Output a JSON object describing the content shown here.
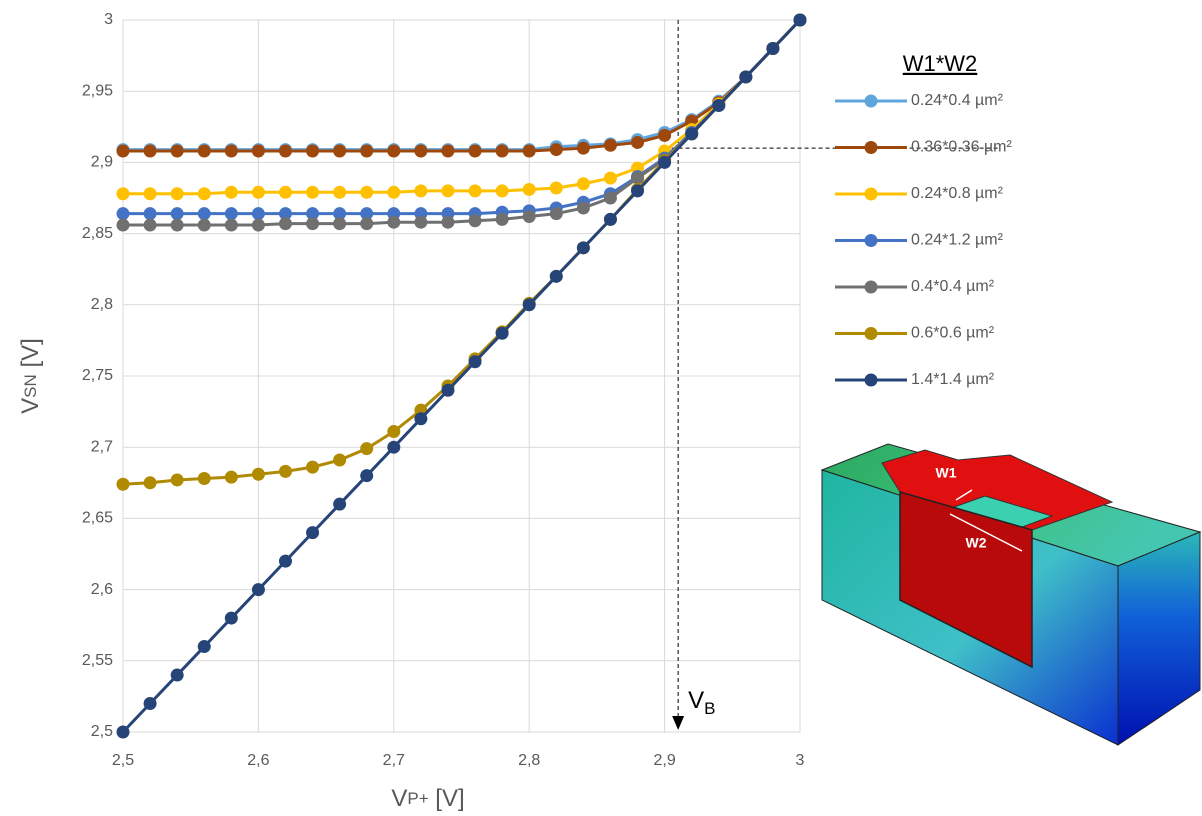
{
  "chart_data": {
    "type": "line",
    "ylabel_parts": [
      "V",
      "SN",
      " [V]"
    ],
    "xlabel_parts": [
      "V",
      "P+",
      " [V]"
    ],
    "legend_title": "W1*W2",
    "annotation": {
      "main": "V",
      "sub": "B"
    },
    "figure_labels": [
      "W1",
      "W2"
    ],
    "vline": 2.91,
    "hline": 2.91,
    "x": [
      2.5,
      2.52,
      2.54,
      2.56,
      2.58,
      2.6,
      2.62,
      2.64,
      2.66,
      2.68,
      2.7,
      2.72,
      2.74,
      2.76,
      2.78,
      2.8,
      2.82,
      2.84,
      2.86,
      2.88,
      2.9,
      2.92,
      2.94,
      2.96,
      2.98,
      3
    ],
    "series": [
      {
        "name": "0.24*0.4 µm²",
        "color": "#5fa6dd",
        "values": [
          2.909,
          2.909,
          2.909,
          2.909,
          2.909,
          2.909,
          2.909,
          2.909,
          2.909,
          2.909,
          2.909,
          2.909,
          2.909,
          2.909,
          2.909,
          2.909,
          2.911,
          2.912,
          2.913,
          2.916,
          2.921,
          2.93,
          2.943,
          2.96,
          2.98,
          3
        ]
      },
      {
        "name": "0.36*0.36 µm²",
        "color": "#9e480e",
        "values": [
          2.908,
          2.908,
          2.908,
          2.908,
          2.908,
          2.908,
          2.908,
          2.908,
          2.908,
          2.908,
          2.908,
          2.908,
          2.908,
          2.908,
          2.908,
          2.908,
          2.909,
          2.91,
          2.912,
          2.914,
          2.919,
          2.929,
          2.942,
          2.96,
          2.98,
          3
        ]
      },
      {
        "name": "0.24*0.8 µm²",
        "color": "#ffc000",
        "values": [
          2.878,
          2.878,
          2.878,
          2.878,
          2.879,
          2.879,
          2.879,
          2.879,
          2.879,
          2.879,
          2.879,
          2.88,
          2.88,
          2.88,
          2.88,
          2.881,
          2.882,
          2.885,
          2.889,
          2.896,
          2.908,
          2.923,
          2.941,
          2.96,
          2.98,
          3
        ]
      },
      {
        "name": "0.24*1.2 µm²",
        "color": "#4472c4",
        "values": [
          2.864,
          2.864,
          2.864,
          2.864,
          2.864,
          2.864,
          2.864,
          2.864,
          2.864,
          2.864,
          2.864,
          2.864,
          2.864,
          2.864,
          2.865,
          2.866,
          2.868,
          2.872,
          2.878,
          2.89,
          2.903,
          2.921,
          2.94,
          2.96,
          2.98,
          3
        ]
      },
      {
        "name": "0.4*0.4 µm²",
        "color": "#707070",
        "values": [
          2.856,
          2.856,
          2.856,
          2.856,
          2.856,
          2.856,
          2.857,
          2.857,
          2.857,
          2.857,
          2.858,
          2.858,
          2.858,
          2.859,
          2.86,
          2.862,
          2.864,
          2.868,
          2.875,
          2.889,
          2.902,
          2.92,
          2.94,
          2.96,
          2.98,
          3
        ]
      },
      {
        "name": "0.6*0.6 µm²",
        "color": "#b08a00",
        "values": [
          2.674,
          2.675,
          2.677,
          2.678,
          2.679,
          2.681,
          2.683,
          2.686,
          2.691,
          2.699,
          2.711,
          2.726,
          2.743,
          2.762,
          2.781,
          2.801,
          2.82,
          2.84,
          2.86,
          2.881,
          2.901,
          2.92,
          2.94,
          2.96,
          2.98,
          3
        ]
      },
      {
        "name": "1.4*1.4 µm²",
        "color": "#264478",
        "values": [
          2.5,
          2.52,
          2.54,
          2.56,
          2.58,
          2.6,
          2.62,
          2.64,
          2.66,
          2.68,
          2.7,
          2.72,
          2.74,
          2.76,
          2.78,
          2.8,
          2.82,
          2.84,
          2.86,
          2.88,
          2.9,
          2.92,
          2.94,
          2.96,
          2.98,
          3
        ]
      }
    ],
    "xlim": [
      2.5,
      3
    ],
    "ylim": [
      2.5,
      3
    ],
    "xticks": [
      {
        "value": 2.5,
        "label": "2,5"
      },
      {
        "value": 2.6,
        "label": "2,6"
      },
      {
        "value": 2.7,
        "label": "2,7"
      },
      {
        "value": 2.8,
        "label": "2,8"
      },
      {
        "value": 2.9,
        "label": "2,9"
      },
      3
    ],
    "yticks": [
      {
        "value": 2.5,
        "label": "2,5"
      },
      {
        "value": 2.55,
        "label": "2,55"
      },
      {
        "value": 2.6,
        "label": "2,6"
      },
      {
        "value": 2.65,
        "label": "2,65"
      },
      {
        "value": 2.7,
        "label": "2,7"
      },
      {
        "value": 2.75,
        "label": "2,75"
      },
      {
        "value": 2.8,
        "label": "2,8"
      },
      {
        "value": 2.85,
        "label": "2,85"
      },
      {
        "value": 2.9,
        "label": "2,9"
      },
      {
        "value": 2.95,
        "label": "2,95"
      },
      3
    ],
    "grid": true
  }
}
